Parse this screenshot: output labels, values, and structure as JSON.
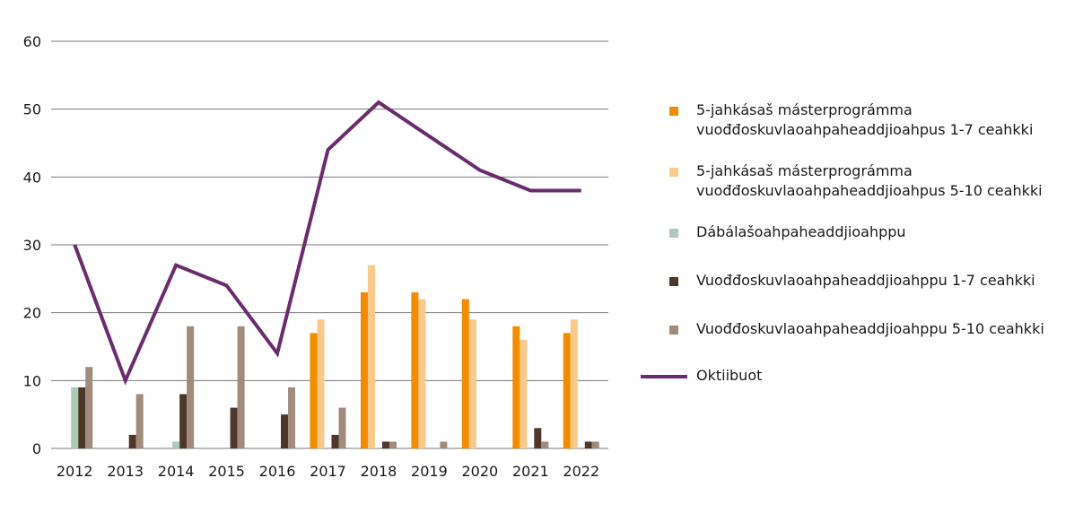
{
  "chart_data": {
    "type": "bar",
    "categories": [
      "2012",
      "2013",
      "2014",
      "2015",
      "2016",
      "2017",
      "2018",
      "2019",
      "2020",
      "2021",
      "2022"
    ],
    "ylim": [
      0,
      60
    ],
    "yticks": [
      0,
      10,
      20,
      30,
      40,
      50,
      60
    ],
    "grid": true,
    "legend_position": "right",
    "series": [
      {
        "name": "5-jahkásaš másterprográmma vuođđoskuvlaoahpaheaddjioahpus 1-7 ceahkki",
        "type": "bar",
        "color": "#f28c00",
        "values": [
          0,
          0,
          0,
          0,
          0,
          17,
          23,
          23,
          22,
          18,
          17
        ]
      },
      {
        "name": "5-jahkásaš másterprográmma vuođđoskuvlaoahpaheaddjioahpus 5-10 ceahkki",
        "type": "bar",
        "color": "#fbc98a",
        "values": [
          0,
          0,
          0,
          0,
          0,
          19,
          27,
          22,
          19,
          16,
          19
        ]
      },
      {
        "name": "Dábálašoahpaheaddjioahppu",
        "type": "bar",
        "color": "#a9cbb7",
        "values": [
          9,
          0,
          1,
          0,
          0,
          0,
          0,
          0,
          0,
          0,
          0
        ]
      },
      {
        "name": "Vuođđoskuvlaoahpaheaddjioahppu  1-7 ceahkki",
        "type": "bar",
        "color": "#4e3629",
        "values": [
          9,
          2,
          8,
          6,
          5,
          2,
          1,
          0,
          0,
          3,
          1
        ]
      },
      {
        "name": "Vuođđoskuvlaoahpaheaddjioahppu 5-10 ceahkki",
        "type": "bar",
        "color": "#a08b7d",
        "values": [
          12,
          8,
          18,
          18,
          9,
          6,
          1,
          1,
          0,
          1,
          1
        ]
      },
      {
        "name": "Oktiibuot",
        "type": "line",
        "color": "#6a2c6e",
        "values": [
          30,
          10,
          27,
          24,
          14,
          44,
          51,
          46,
          41,
          38,
          38
        ]
      }
    ]
  }
}
